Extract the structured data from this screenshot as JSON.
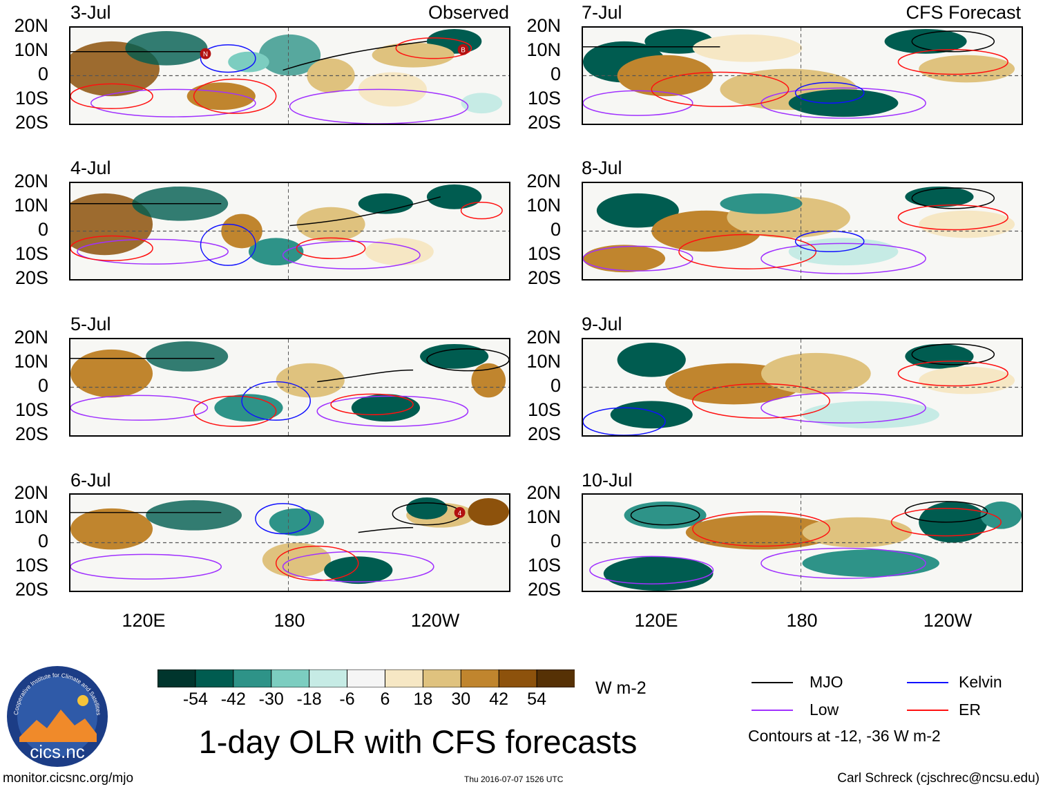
{
  "panels": [
    {
      "date": "3-Jul",
      "corner": "Observed"
    },
    {
      "date": "4-Jul",
      "corner": ""
    },
    {
      "date": "5-Jul",
      "corner": ""
    },
    {
      "date": "6-Jul",
      "corner": ""
    },
    {
      "date": "7-Jul",
      "corner": "CFS Forecast"
    },
    {
      "date": "8-Jul",
      "corner": ""
    },
    {
      "date": "9-Jul",
      "corner": ""
    },
    {
      "date": "10-Jul",
      "corner": ""
    }
  ],
  "y_ticks": [
    "20N",
    "10N",
    "0",
    "10S",
    "20S"
  ],
  "x_ticks": [
    "120E",
    "180",
    "120W"
  ],
  "storm_markers": [
    "N",
    "B",
    "4"
  ],
  "colorbar": {
    "ticks": [
      "-54",
      "-42",
      "-30",
      "-18",
      "-6",
      "6",
      "18",
      "30",
      "42",
      "54"
    ],
    "units": "W m-2",
    "colors": [
      "#00352d",
      "#005c50",
      "#2e9388",
      "#7ccdc0",
      "#c6ebe5",
      "#f5f5f5",
      "#f6e7c4",
      "#dfc27e",
      "#c0852e",
      "#8d520c",
      "#563105"
    ]
  },
  "legend": {
    "items": [
      {
        "label": "MJO",
        "color": "#000000"
      },
      {
        "label": "Kelvin",
        "color": "#1010ff"
      },
      {
        "label": "Low",
        "color": "#a030ff"
      },
      {
        "label": "ER",
        "color": "#ff1010"
      }
    ],
    "note": "Contours at -12, -36 W m-2"
  },
  "title": "1-day OLR with CFS forecasts",
  "footer": {
    "left": "monitor.cicsnc.org/mjo",
    "center": "Thu 2016-07-07 1526 UTC",
    "right": "Carl Schreck (cjschrec@ncsu.edu)"
  },
  "logo": {
    "text": "cics.nc",
    "ring_text": "Cooperative Institute for Climate and Satellites"
  }
}
